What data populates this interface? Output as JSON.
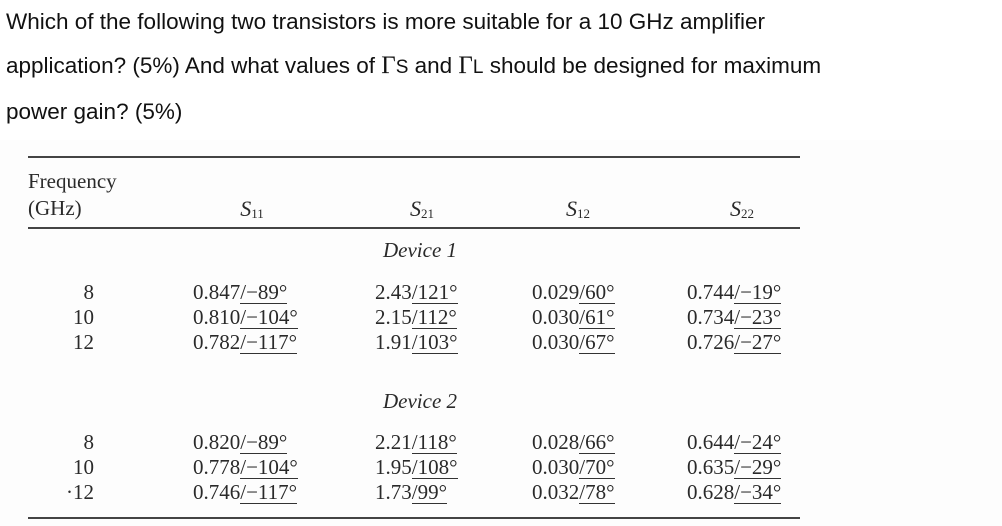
{
  "question": {
    "line1": "Which of the following two transistors is more suitable for a 10 GHz amplifier",
    "line2_a": "application? (5%) And what values of ",
    "gamma_s": "Γ",
    "gamma_s_sub": "S",
    "line2_b": " and ",
    "gamma_l": "Γ",
    "gamma_l_sub": "L",
    "line2_c": " should be designed for maximum",
    "line3": "power gain? (5%)"
  },
  "table": {
    "header": {
      "freq_line1": "Frequency",
      "freq_line2": "(GHz)",
      "s11": "S",
      "s11_sub": "11",
      "s21": "S",
      "s21_sub": "21",
      "s12": "S",
      "s12_sub": "12",
      "s22": "S",
      "s22_sub": "22"
    },
    "devices": [
      {
        "label": "Device 1",
        "rows": [
          {
            "freq": "8",
            "s11": {
              "mag": "0.847",
              "ang": "−89°"
            },
            "s21": {
              "mag": "2.43",
              "ang": "121°"
            },
            "s12": {
              "mag": "0.029",
              "ang": "60°"
            },
            "s22": {
              "mag": "0.744",
              "ang": "−19°"
            }
          },
          {
            "freq": "10",
            "s11": {
              "mag": "0.810",
              "ang": "−104°"
            },
            "s21": {
              "mag": "2.15",
              "ang": "112°"
            },
            "s12": {
              "mag": "0.030",
              "ang": "61°"
            },
            "s22": {
              "mag": "0.734",
              "ang": "−23°"
            }
          },
          {
            "freq": "12",
            "s11": {
              "mag": "0.782",
              "ang": "−117°"
            },
            "s21": {
              "mag": "1.91",
              "ang": "103°"
            },
            "s12": {
              "mag": "0.030",
              "ang": "67°"
            },
            "s22": {
              "mag": "0.726",
              "ang": "−27°"
            }
          }
        ]
      },
      {
        "label": "Device 2",
        "rows": [
          {
            "freq": "8",
            "s11": {
              "mag": "0.820",
              "ang": "−89°"
            },
            "s21": {
              "mag": "2.21",
              "ang": "118°"
            },
            "s12": {
              "mag": "0.028",
              "ang": "66°"
            },
            "s22": {
              "mag": "0.644",
              "ang": "−24°"
            }
          },
          {
            "freq": "10",
            "s11": {
              "mag": "0.778",
              "ang": "−104°"
            },
            "s21": {
              "mag": "1.95",
              "ang": "108°"
            },
            "s12": {
              "mag": "0.030",
              "ang": "70°"
            },
            "s22": {
              "mag": "0.635",
              "ang": "−29°"
            }
          },
          {
            "freq": "·12",
            "s11": {
              "mag": "0.746",
              "ang": "−117°"
            },
            "s21": {
              "mag": "1.73",
              "ang": "99°"
            },
            "s12": {
              "mag": "0.032",
              "ang": "78°"
            },
            "s22": {
              "mag": "0.628",
              "ang": "−34°"
            }
          }
        ]
      }
    ]
  }
}
